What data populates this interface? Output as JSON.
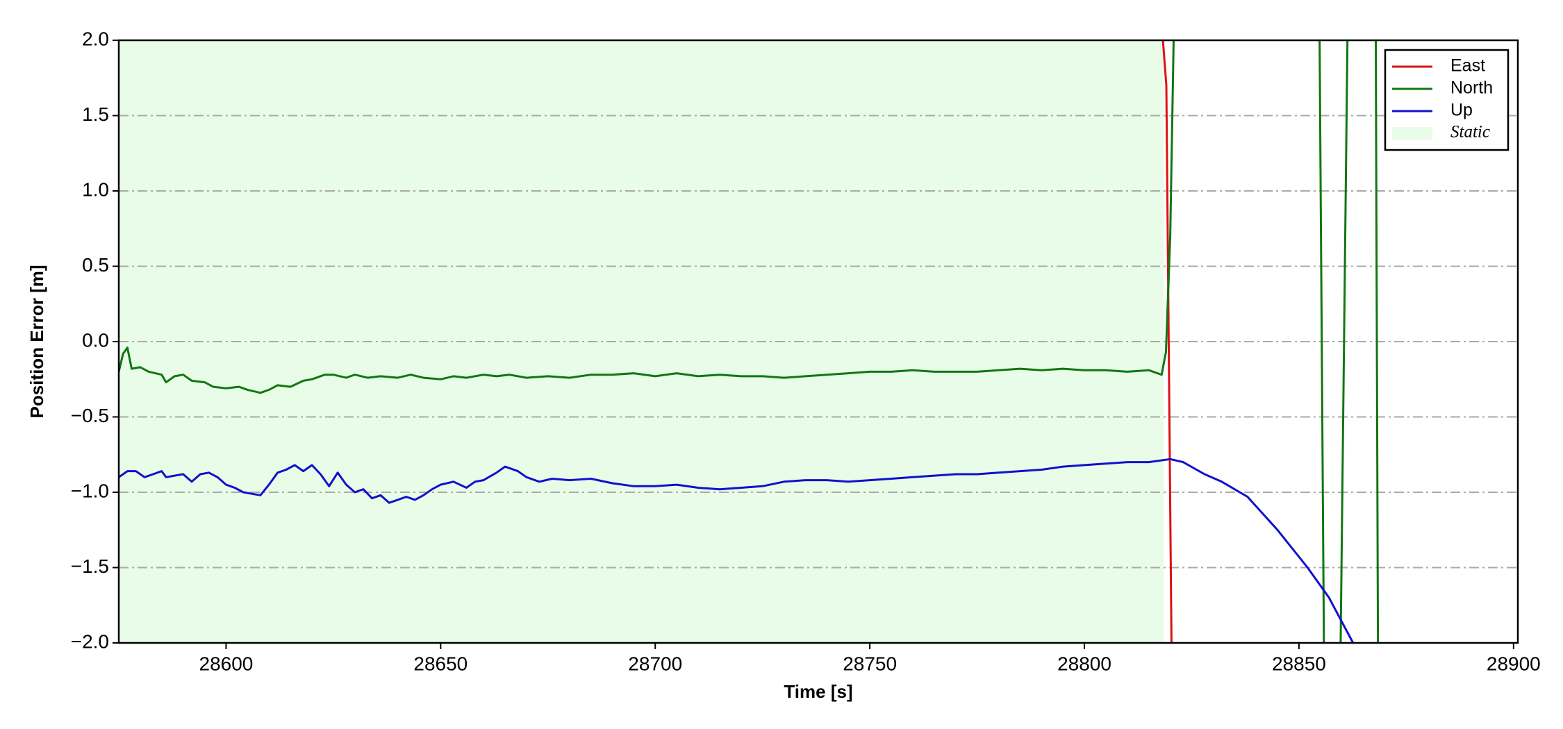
{
  "chart_data": {
    "type": "line",
    "xlabel": "Time [s]",
    "ylabel": "Position Error [m]",
    "xlim": [
      28575,
      28901
    ],
    "ylim": [
      -2.0,
      2.0
    ],
    "xticks": [
      28600,
      28650,
      28700,
      28750,
      28800,
      28850,
      28900
    ],
    "yticks": [
      {
        "value": -2.0,
        "label": "−2.0"
      },
      {
        "value": -1.5,
        "label": "−1.5"
      },
      {
        "value": -1.0,
        "label": "−1.0"
      },
      {
        "value": -0.5,
        "label": "−0.5"
      },
      {
        "value": 0.0,
        "label": "0.0"
      },
      {
        "value": 0.5,
        "label": "0.5"
      },
      {
        "value": 1.0,
        "label": "1.0"
      },
      {
        "value": 1.5,
        "label": "1.5"
      },
      {
        "value": 2.0,
        "label": "2.0"
      }
    ],
    "grid": true,
    "legend": "upper right",
    "shaded_regions": [
      {
        "name": "Static",
        "color": "#e8fce8",
        "xrange": [
          28575,
          28818.5
        ]
      }
    ],
    "series": [
      {
        "name": "East",
        "color": "#dd1111",
        "x": [
          28818.3,
          28819.1,
          28820.3
        ],
        "values": [
          2.0,
          1.7,
          -2.0
        ]
      },
      {
        "name": "North",
        "color": "#117711",
        "x": [
          28575,
          28576,
          28577,
          28578,
          28580,
          28582,
          28585,
          28586,
          28588,
          28590,
          28592,
          28595,
          28597,
          28600,
          28603,
          28605,
          28608,
          28610,
          28612,
          28615,
          28618,
          28620,
          28623,
          28625,
          28628,
          28630,
          28633,
          28636,
          28640,
          28643,
          28646,
          28650,
          28653,
          28656,
          28660,
          28663,
          28666,
          28670,
          28675,
          28680,
          28685,
          28690,
          28695,
          28700,
          28705,
          28710,
          28715,
          28720,
          28725,
          28730,
          28735,
          28740,
          28745,
          28750,
          28755,
          28760,
          28765,
          28770,
          28775,
          28780,
          28785,
          28790,
          28795,
          28800,
          28805,
          28810,
          28815,
          28818,
          28819,
          28820,
          28820.8,
          28838,
          28854.8,
          28855.8,
          28858,
          28859.7,
          28861.3,
          28864,
          28867.9,
          28868.4
        ],
        "values": [
          -0.2,
          -0.08,
          -0.04,
          -0.18,
          -0.17,
          -0.2,
          -0.22,
          -0.27,
          -0.23,
          -0.22,
          -0.26,
          -0.27,
          -0.3,
          -0.31,
          -0.3,
          -0.32,
          -0.34,
          -0.32,
          -0.29,
          -0.3,
          -0.26,
          -0.25,
          -0.22,
          -0.22,
          -0.24,
          -0.22,
          -0.24,
          -0.23,
          -0.24,
          -0.22,
          -0.24,
          -0.25,
          -0.23,
          -0.24,
          -0.22,
          -0.23,
          -0.22,
          -0.24,
          -0.23,
          -0.24,
          -0.22,
          -0.22,
          -0.21,
          -0.23,
          -0.21,
          -0.23,
          -0.22,
          -0.23,
          -0.23,
          -0.24,
          -0.23,
          -0.22,
          -0.21,
          -0.2,
          -0.2,
          -0.19,
          -0.2,
          -0.2,
          -0.2,
          -0.19,
          -0.18,
          -0.19,
          -0.18,
          -0.19,
          -0.19,
          -0.2,
          -0.19,
          -0.22,
          -0.07,
          0.7,
          2.0,
          null,
          2.0,
          -2.0,
          null,
          -2.0,
          2.0,
          null,
          2.0,
          -2.0
        ]
      },
      {
        "name": "Up",
        "color": "#1111cc",
        "x": [
          28575,
          28577,
          28579,
          28581,
          28583,
          28585,
          28586,
          28588,
          28590,
          28592,
          28594,
          28596,
          28598,
          28600,
          28602,
          28604,
          28606,
          28608,
          28610,
          28612,
          28614,
          28616,
          28618,
          28620,
          28622,
          28624,
          28626,
          28628,
          28630,
          28632,
          28634,
          28636,
          28638,
          28640,
          28642,
          28644,
          28646,
          28648,
          28650,
          28653,
          28656,
          28658,
          28660,
          28663,
          28665,
          28668,
          28670,
          28673,
          28676,
          28680,
          28685,
          28690,
          28695,
          28700,
          28705,
          28710,
          28715,
          28720,
          28725,
          28730,
          28735,
          28740,
          28745,
          28750,
          28755,
          28760,
          28765,
          28770,
          28775,
          28780,
          28785,
          28790,
          28795,
          28800,
          28805,
          28810,
          28815,
          28820,
          28823,
          28828,
          28832,
          28838,
          28845,
          28852,
          28857,
          28862.6
        ],
        "values": [
          -0.9,
          -0.86,
          -0.86,
          -0.9,
          -0.88,
          -0.86,
          -0.9,
          -0.89,
          -0.88,
          -0.93,
          -0.88,
          -0.87,
          -0.9,
          -0.95,
          -0.97,
          -1.0,
          -1.01,
          -1.02,
          -0.95,
          -0.87,
          -0.85,
          -0.82,
          -0.86,
          -0.82,
          -0.88,
          -0.96,
          -0.87,
          -0.95,
          -1.0,
          -0.98,
          -1.04,
          -1.02,
          -1.07,
          -1.05,
          -1.03,
          -1.05,
          -1.02,
          -0.98,
          -0.95,
          -0.93,
          -0.97,
          -0.93,
          -0.92,
          -0.87,
          -0.83,
          -0.86,
          -0.9,
          -0.93,
          -0.91,
          -0.92,
          -0.91,
          -0.94,
          -0.96,
          -0.96,
          -0.95,
          -0.97,
          -0.98,
          -0.97,
          -0.96,
          -0.93,
          -0.92,
          -0.92,
          -0.93,
          -0.92,
          -0.91,
          -0.9,
          -0.89,
          -0.88,
          -0.88,
          -0.87,
          -0.86,
          -0.85,
          -0.83,
          -0.82,
          -0.81,
          -0.8,
          -0.8,
          -0.78,
          -0.8,
          -0.88,
          -0.93,
          -1.03,
          -1.25,
          -1.5,
          -1.7,
          -2.0
        ]
      }
    ]
  }
}
